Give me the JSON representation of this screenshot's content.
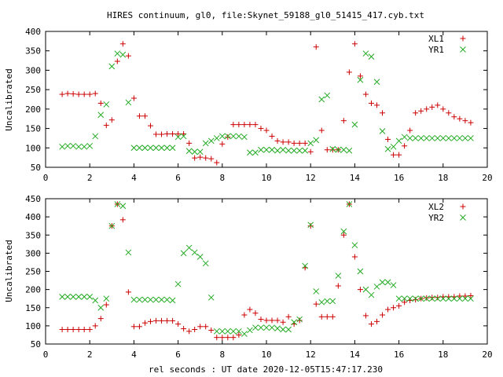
{
  "title": "HIRES continuum, gl0, file:Skynet_59188_gl0_51415_417.cyb.txt",
  "colors": {
    "series1": "#cc0000",
    "series2": "#22aa22",
    "axis": "#000000",
    "background": "#ffffff"
  },
  "chart_data": [
    {
      "type": "scatter",
      "ylabel": "Uncalibrated",
      "xlabel": "",
      "xlim": [
        0,
        20
      ],
      "ylim": [
        50,
        400
      ],
      "xticks": [
        0,
        2,
        4,
        6,
        8,
        10,
        12,
        14,
        16,
        18,
        20
      ],
      "yticks": [
        50,
        100,
        150,
        200,
        250,
        300,
        350,
        400
      ],
      "grid": false,
      "legend": "top-right",
      "series": [
        {
          "name": "XL1",
          "marker": "plus",
          "x": [
            0.75,
            1.0,
            1.25,
            1.5,
            1.75,
            2.0,
            2.25,
            2.5,
            2.75,
            3.0,
            3.25,
            3.5,
            3.75,
            4.0,
            4.25,
            4.5,
            4.75,
            5.0,
            5.25,
            5.5,
            5.75,
            6.0,
            6.25,
            6.5,
            6.75,
            7.0,
            7.25,
            7.5,
            7.75,
            8.0,
            8.25,
            8.5,
            8.75,
            9.0,
            9.25,
            9.5,
            9.75,
            10.0,
            10.25,
            10.5,
            10.75,
            11.0,
            11.25,
            11.5,
            11.75,
            12.0,
            12.25,
            12.5,
            12.75,
            13.0,
            13.25,
            13.5,
            13.75,
            14.0,
            14.25,
            14.5,
            14.75,
            15.0,
            15.25,
            15.5,
            15.75,
            16.0,
            16.25,
            16.5,
            16.75,
            17.0,
            17.25,
            17.5,
            17.75,
            18.0,
            18.25,
            18.5,
            18.75,
            19.0,
            19.25
          ],
          "y": [
            238,
            240,
            239,
            238,
            238,
            238,
            240,
            215,
            158,
            172,
            323,
            368,
            337,
            228,
            182,
            182,
            157,
            135,
            135,
            136,
            136,
            136,
            136,
            112,
            74,
            76,
            74,
            72,
            62,
            110,
            128,
            160,
            160,
            160,
            160,
            160,
            150,
            145,
            130,
            118,
            115,
            115,
            112,
            112,
            112,
            90,
            360,
            145,
            95,
            95,
            95,
            170,
            295,
            368,
            285,
            238,
            215,
            210,
            190,
            122,
            82,
            82,
            105,
            145,
            190,
            195,
            200,
            205,
            210,
            200,
            190,
            180,
            175,
            170,
            165
          ]
        },
        {
          "name": "YR1",
          "marker": "cross",
          "x": [
            0.75,
            1.0,
            1.25,
            1.5,
            1.75,
            2.0,
            2.25,
            2.5,
            2.75,
            3.0,
            3.25,
            3.5,
            3.75,
            4.0,
            4.25,
            4.5,
            4.75,
            5.0,
            5.25,
            5.5,
            5.75,
            6.0,
            6.25,
            6.5,
            6.75,
            7.0,
            7.25,
            7.5,
            7.75,
            8.0,
            8.25,
            8.5,
            8.75,
            9.0,
            9.25,
            9.5,
            9.75,
            10.0,
            10.25,
            10.5,
            10.75,
            11.0,
            11.25,
            11.5,
            11.75,
            12.0,
            12.25,
            12.5,
            12.75,
            13.0,
            13.25,
            13.5,
            13.75,
            14.0,
            14.25,
            14.5,
            14.75,
            15.0,
            15.25,
            15.5,
            15.75,
            16.0,
            16.25,
            16.5,
            16.75,
            17.0,
            17.25,
            17.5,
            17.75,
            18.0,
            18.25,
            18.5,
            18.75,
            19.0,
            19.25
          ],
          "y": [
            103,
            105,
            105,
            103,
            103,
            105,
            130,
            185,
            212,
            310,
            343,
            340,
            217,
            100,
            100,
            100,
            100,
            100,
            100,
            100,
            100,
            128,
            130,
            92,
            90,
            90,
            112,
            118,
            125,
            130,
            130,
            130,
            130,
            128,
            88,
            88,
            95,
            95,
            95,
            93,
            95,
            93,
            93,
            93,
            93,
            112,
            120,
            225,
            235,
            97,
            95,
            95,
            93,
            160,
            275,
            343,
            335,
            270,
            143,
            97,
            103,
            118,
            128,
            125,
            125,
            125,
            125,
            125,
            125,
            125,
            125,
            125,
            125,
            125,
            125
          ]
        }
      ]
    },
    {
      "type": "scatter",
      "ylabel": "Uncalibrated",
      "xlabel": "rel seconds : UT date 2020-12-05T15:47:17.230",
      "xlim": [
        0,
        20
      ],
      "ylim": [
        50,
        450
      ],
      "xticks": [
        0,
        2,
        4,
        6,
        8,
        10,
        12,
        14,
        16,
        18,
        20
      ],
      "yticks": [
        50,
        100,
        150,
        200,
        250,
        300,
        350,
        400,
        450
      ],
      "grid": false,
      "legend": "top-right",
      "series": [
        {
          "name": "XL2",
          "marker": "plus",
          "x": [
            0.75,
            1.0,
            1.25,
            1.5,
            1.75,
            2.0,
            2.25,
            2.5,
            2.75,
            3.0,
            3.25,
            3.5,
            3.75,
            4.0,
            4.25,
            4.5,
            4.75,
            5.0,
            5.25,
            5.5,
            5.75,
            6.0,
            6.25,
            6.5,
            6.75,
            7.0,
            7.25,
            7.5,
            7.75,
            8.0,
            8.25,
            8.5,
            8.75,
            9.0,
            9.25,
            9.5,
            9.75,
            10.0,
            10.25,
            10.5,
            10.75,
            11.0,
            11.25,
            11.5,
            11.75,
            12.0,
            12.25,
            12.5,
            12.75,
            13.0,
            13.25,
            13.5,
            13.75,
            14.0,
            14.25,
            14.5,
            14.75,
            15.0,
            15.25,
            15.5,
            15.75,
            16.0,
            16.25,
            16.5,
            16.75,
            17.0,
            17.25,
            17.5,
            17.75,
            18.0,
            18.25,
            18.5,
            18.75,
            19.0,
            19.25
          ],
          "y": [
            90,
            90,
            90,
            90,
            90,
            90,
            100,
            120,
            158,
            375,
            435,
            392,
            193,
            98,
            98,
            108,
            112,
            114,
            114,
            114,
            114,
            105,
            92,
            85,
            90,
            98,
            98,
            88,
            68,
            68,
            68,
            68,
            75,
            130,
            145,
            135,
            118,
            115,
            115,
            115,
            110,
            125,
            105,
            115,
            260,
            375,
            160,
            125,
            125,
            125,
            210,
            350,
            435,
            290,
            200,
            128,
            105,
            112,
            130,
            145,
            150,
            155,
            165,
            170,
            172,
            175,
            177,
            178,
            178,
            180,
            180,
            180,
            182,
            182,
            183
          ]
        },
        {
          "name": "YR2",
          "marker": "cross",
          "x": [
            0.75,
            1.0,
            1.25,
            1.5,
            1.75,
            2.0,
            2.25,
            2.5,
            2.75,
            3.0,
            3.25,
            3.5,
            3.75,
            4.0,
            4.25,
            4.5,
            4.75,
            5.0,
            5.25,
            5.5,
            5.75,
            6.0,
            6.25,
            6.5,
            6.75,
            7.0,
            7.25,
            7.5,
            7.75,
            8.0,
            8.25,
            8.5,
            8.75,
            9.0,
            9.25,
            9.5,
            9.75,
            10.0,
            10.25,
            10.5,
            10.75,
            11.0,
            11.25,
            11.5,
            11.75,
            12.0,
            12.25,
            12.5,
            12.75,
            13.0,
            13.25,
            13.5,
            13.75,
            14.0,
            14.25,
            14.5,
            14.75,
            15.0,
            15.25,
            15.5,
            15.75,
            16.0,
            16.25,
            16.5,
            16.75,
            17.0,
            17.25,
            17.5,
            17.75,
            18.0,
            18.25,
            18.5,
            18.75,
            19.0,
            19.25
          ],
          "y": [
            180,
            180,
            180,
            180,
            180,
            180,
            170,
            150,
            175,
            375,
            435,
            430,
            302,
            172,
            172,
            172,
            172,
            172,
            172,
            172,
            170,
            215,
            300,
            315,
            302,
            290,
            272,
            178,
            85,
            85,
            85,
            85,
            85,
            78,
            88,
            95,
            95,
            95,
            95,
            93,
            90,
            90,
            110,
            118,
            265,
            378,
            195,
            165,
            168,
            168,
            238,
            360,
            435,
            322,
            250,
            200,
            185,
            208,
            220,
            220,
            212,
            175,
            175,
            175,
            175,
            175,
            175,
            175,
            175,
            175,
            175,
            175,
            175,
            175,
            175
          ]
        }
      ]
    }
  ]
}
